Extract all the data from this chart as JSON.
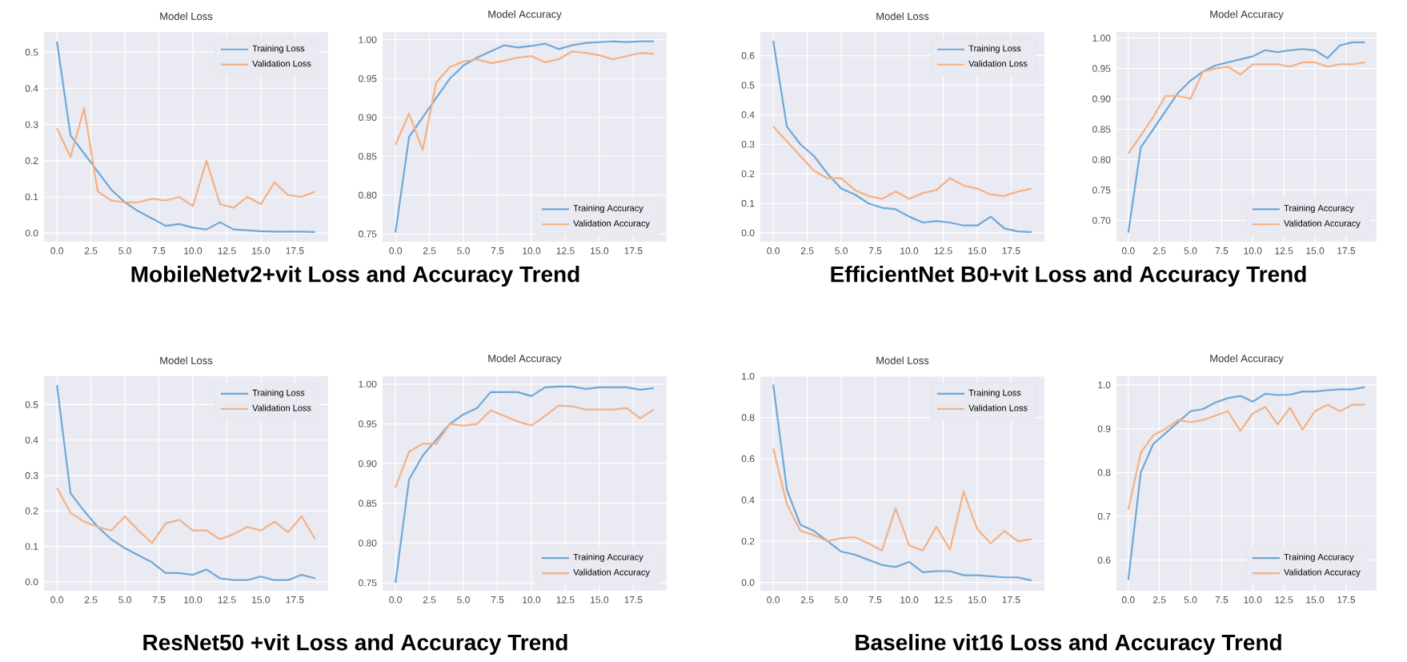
{
  "chart_data": [
    {
      "type": "line",
      "title": "Model Loss",
      "x": [
        0,
        1,
        2,
        3,
        4,
        5,
        6,
        7,
        8,
        9,
        10,
        11,
        12,
        13,
        14,
        15,
        16,
        17,
        18,
        19
      ],
      "xlim": [
        -0.95,
        19.95
      ],
      "xticks": [
        {
          "value": 0,
          "label": "0.0"
        },
        {
          "value": 2.5,
          "label": "2.5"
        },
        {
          "value": 5,
          "label": "5.0"
        },
        {
          "value": 7.5,
          "label": "7.5"
        },
        {
          "value": 10,
          "label": "10.0"
        },
        {
          "value": 12.5,
          "label": "12.5"
        },
        {
          "value": 15,
          "label": "15.0"
        },
        {
          "value": 17.5,
          "label": "17.5"
        }
      ],
      "ylim": [
        -0.024,
        0.556
      ],
      "yticks": [
        {
          "value": 0,
          "label": "0.0"
        },
        {
          "value": 0.1,
          "label": "0.1"
        },
        {
          "value": 0.2,
          "label": "0.2"
        },
        {
          "value": 0.3,
          "label": "0.3"
        },
        {
          "value": 0.4,
          "label": "0.4"
        },
        {
          "value": 0.5,
          "label": "0.5"
        }
      ],
      "grid": true,
      "legend": "top right",
      "annotations": [
        "MobileNetv2+vit Loss and Accuracy Trend"
      ],
      "series": [
        {
          "name": "Training Loss",
          "color": "#6fa8d6",
          "values": [
            0.53,
            0.27,
            0.22,
            0.17,
            0.12,
            0.085,
            0.06,
            0.04,
            0.02,
            0.025,
            0.015,
            0.01,
            0.03,
            0.01,
            0.008,
            0.005,
            0.004,
            0.004,
            0.004,
            0.003
          ]
        },
        {
          "name": "Validation Loss",
          "color": "#f4b183",
          "values": [
            0.29,
            0.21,
            0.345,
            0.115,
            0.09,
            0.085,
            0.085,
            0.095,
            0.09,
            0.1,
            0.075,
            0.2,
            0.08,
            0.07,
            0.1,
            0.08,
            0.14,
            0.105,
            0.1,
            0.115
          ]
        }
      ]
    },
    {
      "type": "line",
      "title": "Model Accuracy",
      "x": [
        0,
        1,
        2,
        3,
        4,
        5,
        6,
        7,
        8,
        9,
        10,
        11,
        12,
        13,
        14,
        15,
        16,
        17,
        18,
        19
      ],
      "xlim": [
        -0.95,
        19.95
      ],
      "xticks": [
        {
          "value": 0,
          "label": "0.0"
        },
        {
          "value": 2.5,
          "label": "2.5"
        },
        {
          "value": 5,
          "label": "5.0"
        },
        {
          "value": 7.5,
          "label": "7.5"
        },
        {
          "value": 10,
          "label": "10.0"
        },
        {
          "value": 12.5,
          "label": "12.5"
        },
        {
          "value": 15,
          "label": "15.0"
        },
        {
          "value": 17.5,
          "label": "17.5"
        }
      ],
      "ylim": [
        0.74,
        1.01
      ],
      "yticks": [
        {
          "value": 0.75,
          "label": "0.75"
        },
        {
          "value": 0.8,
          "label": "0.80"
        },
        {
          "value": 0.85,
          "label": "0.85"
        },
        {
          "value": 0.9,
          "label": "0.90"
        },
        {
          "value": 0.95,
          "label": "0.95"
        },
        {
          "value": 1.0,
          "label": "1.00"
        }
      ],
      "grid": true,
      "legend": "bottom right",
      "series": [
        {
          "name": "Training Accuracy",
          "color": "#6fa8d6",
          "values": [
            0.752,
            0.875,
            0.9,
            0.925,
            0.95,
            0.967,
            0.977,
            0.985,
            0.993,
            0.99,
            0.992,
            0.995,
            0.988,
            0.993,
            0.996,
            0.997,
            0.998,
            0.997,
            0.998,
            0.998
          ]
        },
        {
          "name": "Validation Accuracy",
          "color": "#f4b183",
          "values": [
            0.865,
            0.905,
            0.858,
            0.945,
            0.965,
            0.972,
            0.975,
            0.97,
            0.973,
            0.977,
            0.979,
            0.971,
            0.975,
            0.985,
            0.983,
            0.98,
            0.975,
            0.979,
            0.983,
            0.982
          ]
        }
      ]
    },
    {
      "type": "line",
      "title": "Model Loss",
      "x": [
        0,
        1,
        2,
        3,
        4,
        5,
        6,
        7,
        8,
        9,
        10,
        11,
        12,
        13,
        14,
        15,
        16,
        17,
        18,
        19
      ],
      "xlim": [
        -0.95,
        19.95
      ],
      "xticks": [
        {
          "value": 0,
          "label": "0.0"
        },
        {
          "value": 2.5,
          "label": "2.5"
        },
        {
          "value": 5,
          "label": "5.0"
        },
        {
          "value": 7.5,
          "label": "7.5"
        },
        {
          "value": 10,
          "label": "10.0"
        },
        {
          "value": 12.5,
          "label": "12.5"
        },
        {
          "value": 15,
          "label": "15.0"
        },
        {
          "value": 17.5,
          "label": "17.5"
        }
      ],
      "ylim": [
        -0.03,
        0.68
      ],
      "yticks": [
        {
          "value": 0,
          "label": "0.0"
        },
        {
          "value": 0.1,
          "label": "0.1"
        },
        {
          "value": 0.2,
          "label": "0.2"
        },
        {
          "value": 0.3,
          "label": "0.3"
        },
        {
          "value": 0.4,
          "label": "0.4"
        },
        {
          "value": 0.5,
          "label": "0.5"
        },
        {
          "value": 0.6,
          "label": "0.6"
        }
      ],
      "grid": true,
      "legend": "top right",
      "annotations": [
        "EfficientNet B0+vit Loss and Accuracy Trend"
      ],
      "series": [
        {
          "name": "Training Loss",
          "color": "#6fa8d6",
          "values": [
            0.65,
            0.36,
            0.3,
            0.26,
            0.2,
            0.15,
            0.13,
            0.1,
            0.085,
            0.08,
            0.055,
            0.035,
            0.04,
            0.035,
            0.025,
            0.025,
            0.055,
            0.015,
            0.005,
            0.003
          ]
        },
        {
          "name": "Validation Loss",
          "color": "#f4b183",
          "values": [
            0.36,
            0.31,
            0.26,
            0.21,
            0.185,
            0.185,
            0.145,
            0.125,
            0.115,
            0.14,
            0.115,
            0.135,
            0.145,
            0.185,
            0.16,
            0.15,
            0.13,
            0.125,
            0.14,
            0.15
          ]
        }
      ]
    },
    {
      "type": "line",
      "title": "Model Accuracy",
      "x": [
        0,
        1,
        2,
        3,
        4,
        5,
        6,
        7,
        8,
        9,
        10,
        11,
        12,
        13,
        14,
        15,
        16,
        17,
        18,
        19
      ],
      "xlim": [
        -0.95,
        19.95
      ],
      "xticks": [
        {
          "value": 0,
          "label": "0.0"
        },
        {
          "value": 2.5,
          "label": "2.5"
        },
        {
          "value": 5,
          "label": "5.0"
        },
        {
          "value": 7.5,
          "label": "7.5"
        },
        {
          "value": 10,
          "label": "10.0"
        },
        {
          "value": 12.5,
          "label": "12.5"
        },
        {
          "value": 15,
          "label": "15.0"
        },
        {
          "value": 17.5,
          "label": "17.5"
        }
      ],
      "ylim": [
        0.665,
        1.01
      ],
      "yticks": [
        {
          "value": 0.7,
          "label": "0.70"
        },
        {
          "value": 0.75,
          "label": "0.75"
        },
        {
          "value": 0.8,
          "label": "0.80"
        },
        {
          "value": 0.85,
          "label": "0.85"
        },
        {
          "value": 0.9,
          "label": "0.90"
        },
        {
          "value": 0.95,
          "label": "0.95"
        },
        {
          "value": 1.0,
          "label": "1.00"
        }
      ],
      "grid": true,
      "legend": "bottom right",
      "series": [
        {
          "name": "Training Accuracy",
          "color": "#6fa8d6",
          "values": [
            0.68,
            0.82,
            0.85,
            0.88,
            0.91,
            0.93,
            0.945,
            0.955,
            0.96,
            0.965,
            0.97,
            0.98,
            0.977,
            0.98,
            0.982,
            0.98,
            0.967,
            0.988,
            0.993,
            0.993
          ]
        },
        {
          "name": "Validation Accuracy",
          "color": "#f4b183",
          "values": [
            0.81,
            0.84,
            0.87,
            0.905,
            0.905,
            0.9,
            0.945,
            0.95,
            0.953,
            0.94,
            0.957,
            0.957,
            0.957,
            0.953,
            0.96,
            0.96,
            0.953,
            0.957,
            0.957,
            0.96
          ]
        }
      ]
    },
    {
      "type": "line",
      "title": "Model Loss",
      "x": [
        0,
        1,
        2,
        3,
        4,
        5,
        6,
        7,
        8,
        9,
        10,
        11,
        12,
        13,
        14,
        15,
        16,
        17,
        18,
        19
      ],
      "xlim": [
        -0.95,
        19.95
      ],
      "xticks": [
        {
          "value": 0,
          "label": "0.0"
        },
        {
          "value": 2.5,
          "label": "2.5"
        },
        {
          "value": 5,
          "label": "5.0"
        },
        {
          "value": 7.5,
          "label": "7.5"
        },
        {
          "value": 10,
          "label": "10.0"
        },
        {
          "value": 12.5,
          "label": "12.5"
        },
        {
          "value": 15,
          "label": "15.0"
        },
        {
          "value": 17.5,
          "label": "17.5"
        }
      ],
      "ylim": [
        -0.025,
        0.58
      ],
      "yticks": [
        {
          "value": 0,
          "label": "0.0"
        },
        {
          "value": 0.1,
          "label": "0.1"
        },
        {
          "value": 0.2,
          "label": "0.2"
        },
        {
          "value": 0.3,
          "label": "0.3"
        },
        {
          "value": 0.4,
          "label": "0.4"
        },
        {
          "value": 0.5,
          "label": "0.5"
        }
      ],
      "grid": true,
      "legend": "top right",
      "annotations": [
        "ResNet50 +vit Loss and Accuracy Trend"
      ],
      "series": [
        {
          "name": "Training Loss",
          "color": "#6fa8d6",
          "values": [
            0.555,
            0.25,
            0.2,
            0.155,
            0.12,
            0.095,
            0.075,
            0.055,
            0.025,
            0.025,
            0.02,
            0.035,
            0.01,
            0.005,
            0.005,
            0.015,
            0.005,
            0.005,
            0.02,
            0.01
          ]
        },
        {
          "name": "Validation Loss",
          "color": "#f4b183",
          "values": [
            0.265,
            0.195,
            0.17,
            0.155,
            0.145,
            0.185,
            0.145,
            0.11,
            0.165,
            0.175,
            0.145,
            0.145,
            0.12,
            0.135,
            0.155,
            0.145,
            0.17,
            0.14,
            0.185,
            0.12
          ]
        }
      ]
    },
    {
      "type": "line",
      "title": "Model Accuracy",
      "x": [
        0,
        1,
        2,
        3,
        4,
        5,
        6,
        7,
        8,
        9,
        10,
        11,
        12,
        13,
        14,
        15,
        16,
        17,
        18,
        19
      ],
      "xlim": [
        -0.95,
        19.95
      ],
      "xticks": [
        {
          "value": 0,
          "label": "0.0"
        },
        {
          "value": 2.5,
          "label": "2.5"
        },
        {
          "value": 5,
          "label": "5.0"
        },
        {
          "value": 7.5,
          "label": "7.5"
        },
        {
          "value": 10,
          "label": "10.0"
        },
        {
          "value": 12.5,
          "label": "12.5"
        },
        {
          "value": 15,
          "label": "15.0"
        },
        {
          "value": 17.5,
          "label": "17.5"
        }
      ],
      "ylim": [
        0.74,
        1.01
      ],
      "yticks": [
        {
          "value": 0.75,
          "label": "0.75"
        },
        {
          "value": 0.8,
          "label": "0.80"
        },
        {
          "value": 0.85,
          "label": "0.85"
        },
        {
          "value": 0.9,
          "label": "0.90"
        },
        {
          "value": 0.95,
          "label": "0.95"
        },
        {
          "value": 1.0,
          "label": "1.00"
        }
      ],
      "grid": true,
      "legend": "bottom right",
      "series": [
        {
          "name": "Training Accuracy",
          "color": "#6fa8d6",
          "values": [
            0.75,
            0.88,
            0.91,
            0.93,
            0.95,
            0.962,
            0.97,
            0.99,
            0.99,
            0.99,
            0.985,
            0.996,
            0.997,
            0.997,
            0.994,
            0.996,
            0.996,
            0.996,
            0.993,
            0.995
          ]
        },
        {
          "name": "Validation Accuracy",
          "color": "#f4b183",
          "values": [
            0.87,
            0.915,
            0.925,
            0.925,
            0.95,
            0.948,
            0.95,
            0.967,
            0.96,
            0.953,
            0.948,
            0.96,
            0.973,
            0.972,
            0.968,
            0.968,
            0.968,
            0.97,
            0.957,
            0.968
          ]
        }
      ]
    },
    {
      "type": "line",
      "title": "Model Loss",
      "x": [
        0,
        1,
        2,
        3,
        4,
        5,
        6,
        7,
        8,
        9,
        10,
        11,
        12,
        13,
        14,
        15,
        16,
        17,
        18,
        19
      ],
      "xlim": [
        -0.95,
        19.95
      ],
      "xticks": [
        {
          "value": 0,
          "label": "0.0"
        },
        {
          "value": 2.5,
          "label": "2.5"
        },
        {
          "value": 5,
          "label": "5.0"
        },
        {
          "value": 7.5,
          "label": "7.5"
        },
        {
          "value": 10,
          "label": "10.0"
        },
        {
          "value": 12.5,
          "label": "12.5"
        },
        {
          "value": 15,
          "label": "15.0"
        },
        {
          "value": 17.5,
          "label": "17.5"
        }
      ],
      "ylim": [
        -0.04,
        1.0
      ],
      "yticks": [
        {
          "value": 0,
          "label": "0.0"
        },
        {
          "value": 0.2,
          "label": "0.2"
        },
        {
          "value": 0.4,
          "label": "0.4"
        },
        {
          "value": 0.6,
          "label": "0.6"
        },
        {
          "value": 0.8,
          "label": "0.8"
        },
        {
          "value": 1.0,
          "label": "1.0"
        }
      ],
      "grid": true,
      "legend": "top right",
      "annotations": [
        "Baseline vit16 Loss and Accuracy Trend"
      ],
      "series": [
        {
          "name": "Training Loss",
          "color": "#6fa8d6",
          "values": [
            0.96,
            0.45,
            0.28,
            0.25,
            0.2,
            0.15,
            0.135,
            0.11,
            0.085,
            0.075,
            0.1,
            0.05,
            0.055,
            0.055,
            0.035,
            0.035,
            0.03,
            0.025,
            0.025,
            0.01
          ]
        },
        {
          "name": "Validation Loss",
          "color": "#f4b183",
          "values": [
            0.65,
            0.38,
            0.25,
            0.23,
            0.2,
            0.215,
            0.22,
            0.19,
            0.155,
            0.36,
            0.18,
            0.155,
            0.27,
            0.16,
            0.44,
            0.26,
            0.19,
            0.25,
            0.2,
            0.21
          ]
        }
      ]
    },
    {
      "type": "line",
      "title": "Model Accuracy",
      "x": [
        0,
        1,
        2,
        3,
        4,
        5,
        6,
        7,
        8,
        9,
        10,
        11,
        12,
        13,
        14,
        15,
        16,
        17,
        18,
        19
      ],
      "xlim": [
        -0.95,
        19.95
      ],
      "xticks": [
        {
          "value": 0,
          "label": "0.0"
        },
        {
          "value": 2.5,
          "label": "2.5"
        },
        {
          "value": 5,
          "label": "5.0"
        },
        {
          "value": 7.5,
          "label": "7.5"
        },
        {
          "value": 10,
          "label": "10.0"
        },
        {
          "value": 12.5,
          "label": "12.5"
        },
        {
          "value": 15,
          "label": "15.0"
        },
        {
          "value": 17.5,
          "label": "17.5"
        }
      ],
      "ylim": [
        0.53,
        1.02
      ],
      "yticks": [
        {
          "value": 0.6,
          "label": "0.6"
        },
        {
          "value": 0.7,
          "label": "0.7"
        },
        {
          "value": 0.8,
          "label": "0.8"
        },
        {
          "value": 0.9,
          "label": "0.9"
        },
        {
          "value": 1.0,
          "label": "1.0"
        }
      ],
      "grid": true,
      "legend": "bottom right",
      "series": [
        {
          "name": "Training Accuracy",
          "color": "#6fa8d6",
          "values": [
            0.555,
            0.8,
            0.865,
            0.89,
            0.915,
            0.94,
            0.945,
            0.96,
            0.97,
            0.975,
            0.962,
            0.98,
            0.977,
            0.978,
            0.985,
            0.985,
            0.988,
            0.99,
            0.99,
            0.995
          ]
        },
        {
          "name": "Validation Accuracy",
          "color": "#f4b183",
          "values": [
            0.715,
            0.845,
            0.885,
            0.9,
            0.92,
            0.915,
            0.92,
            0.93,
            0.94,
            0.895,
            0.935,
            0.95,
            0.91,
            0.948,
            0.898,
            0.94,
            0.955,
            0.94,
            0.955,
            0.955
          ]
        }
      ]
    }
  ]
}
